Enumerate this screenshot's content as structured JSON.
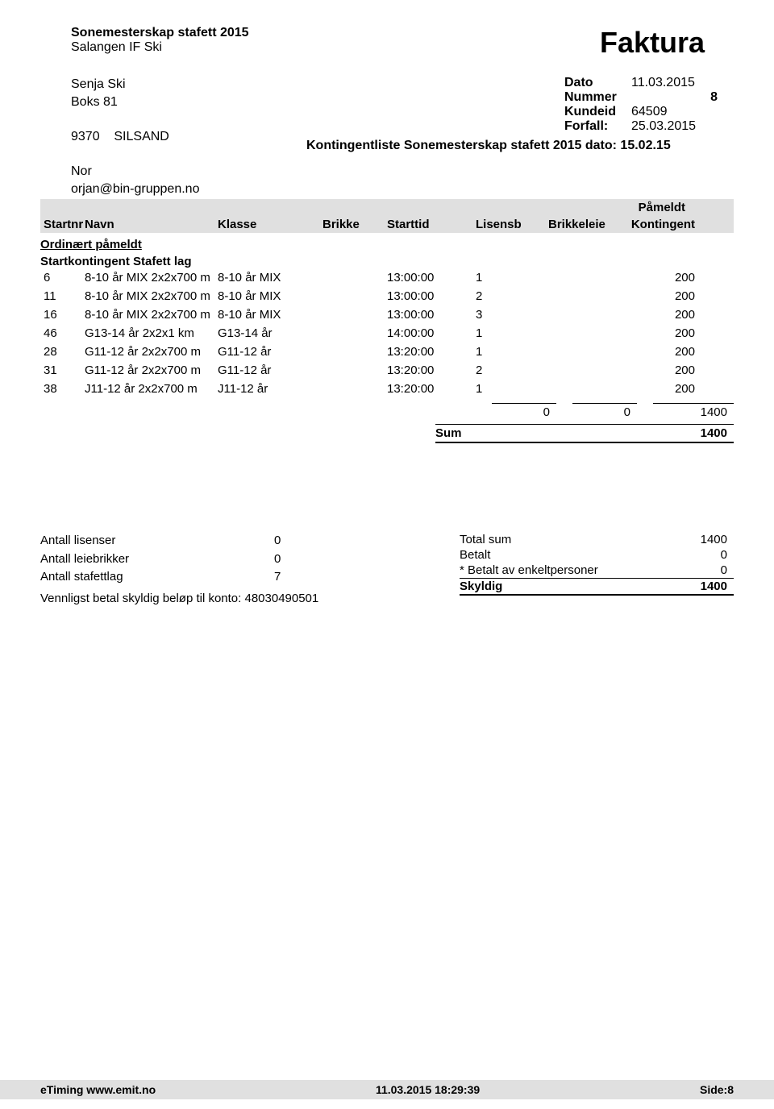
{
  "header": {
    "event_title": "Sonemesterskap stafett 2015",
    "organizer": "Salangen IF Ski",
    "faktura_label": "Faktura"
  },
  "recipient": {
    "name": "Senja Ski",
    "address": "Boks 81",
    "postal": "9370",
    "city": "SILSAND"
  },
  "meta": {
    "dato_label": "Dato",
    "dato_value": "11.03.2015",
    "nummer_label": "Nummer",
    "nummer_value": "8",
    "kundeid_label": "Kundeid",
    "kundeid_value": "64509",
    "forfall_label": "Forfall:",
    "forfall_value": "25.03.2015",
    "kontingent_line": "Kontingentliste Sonemesterskap stafett 2015 dato: 15.02.15"
  },
  "contact": {
    "country": "Nor",
    "email": "orjan@bin-gruppen.no"
  },
  "table": {
    "headers": {
      "startnr": "Startnr",
      "navn": "Navn",
      "klasse": "Klasse",
      "brikke": "Brikke",
      "starttid": "Starttid",
      "pameldt": "Påmeldt",
      "lisensb": "Lisensb",
      "brikkeleie": "Brikkeleie",
      "kontingent": "Kontingent"
    },
    "section_title": "Ordinært påmeldt",
    "sub_section": "Startkontingent Stafett lag",
    "rows": [
      {
        "startnr": "6",
        "navn": "8-10 år MIX 2x2x700 m",
        "klasse": "8-10 år MIX",
        "starttid": "13:00:00",
        "lisensb": "1",
        "kontingent": "200"
      },
      {
        "startnr": "11",
        "navn": "8-10 år MIX 2x2x700 m",
        "klasse": "8-10 år MIX",
        "starttid": "13:00:00",
        "lisensb": "2",
        "kontingent": "200"
      },
      {
        "startnr": "16",
        "navn": "8-10 år MIX 2x2x700 m",
        "klasse": "8-10 år MIX",
        "starttid": "13:00:00",
        "lisensb": "3",
        "kontingent": "200"
      },
      {
        "startnr": "46",
        "navn": "G13-14 år 2x2x1 km",
        "klasse": "G13-14 år",
        "starttid": "14:00:00",
        "lisensb": "1",
        "kontingent": "200"
      },
      {
        "startnr": "28",
        "navn": "G11-12 år 2x2x700 m",
        "klasse": "G11-12 år",
        "starttid": "13:20:00",
        "lisensb": "1",
        "kontingent": "200"
      },
      {
        "startnr": "31",
        "navn": "G11-12 år 2x2x700 m",
        "klasse": "G11-12 år",
        "starttid": "13:20:00",
        "lisensb": "2",
        "kontingent": "200"
      },
      {
        "startnr": "38",
        "navn": "J11-12 år 2x2x700 m",
        "klasse": "J11-12 år",
        "starttid": "13:20:00",
        "lisensb": "1",
        "kontingent": "200"
      }
    ],
    "totals": {
      "col1": "0",
      "col2": "0",
      "col3": "1400",
      "sum_label": "Sum",
      "sum_value": "1400"
    }
  },
  "summary": {
    "left": {
      "lisenser_label": "Antall lisenser",
      "lisenser_value": "0",
      "leiebrikker_label": "Antall leiebrikker",
      "leiebrikker_value": "0",
      "stafettlag_label": "Antall stafettlag",
      "stafettlag_value": "7",
      "pay_note": "Vennligst betal skyldig beløp til konto: 48030490501"
    },
    "right": {
      "total_sum_label": "Total sum",
      "total_sum_value": "1400",
      "betalt_label": "Betalt",
      "betalt_value": "0",
      "betalt_enkelt_label": "* Betalt av enkeltpersoner",
      "betalt_enkelt_value": "0",
      "skyldig_label": "Skyldig",
      "skyldig_value": "1400"
    }
  },
  "footer": {
    "left": "eTiming www.emit.no",
    "center": "11.03.2015 18:29:39",
    "right": "Side:8"
  }
}
